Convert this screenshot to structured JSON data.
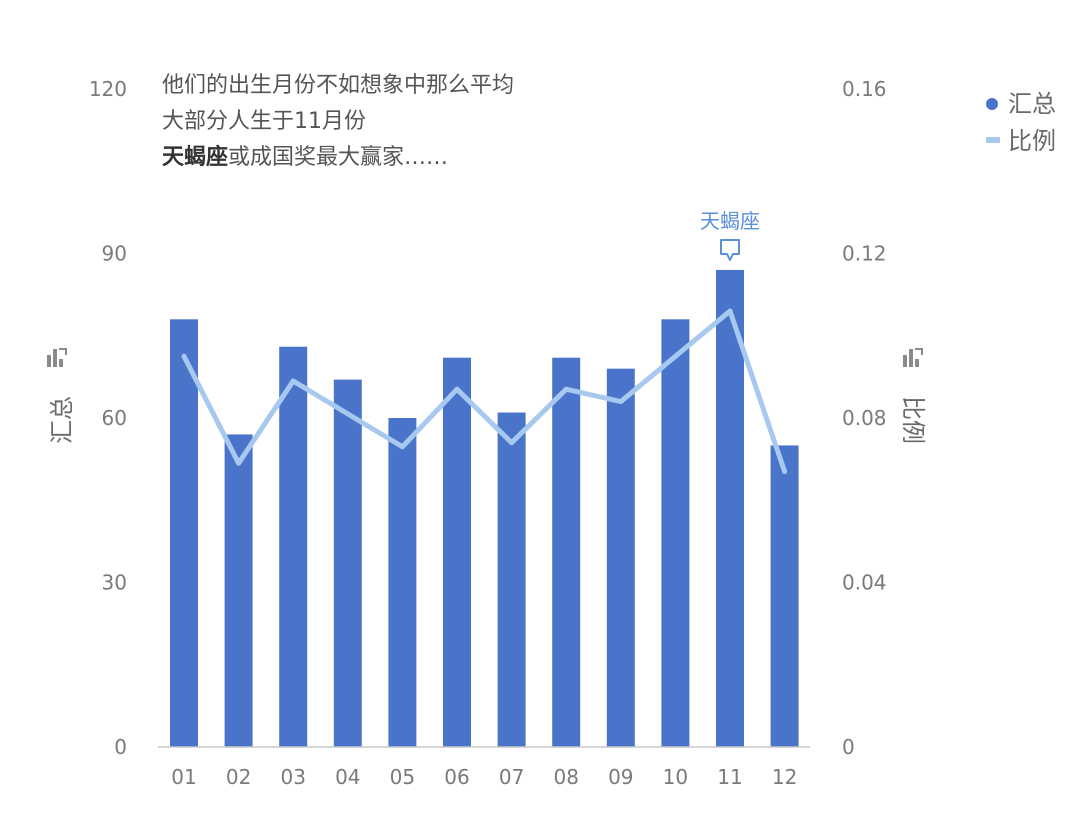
{
  "chart_data": {
    "type": "bar",
    "categories": [
      "01",
      "02",
      "03",
      "04",
      "05",
      "06",
      "07",
      "08",
      "09",
      "10",
      "11",
      "12"
    ],
    "series": [
      {
        "name": "汇总",
        "type": "bar",
        "axis": "left",
        "color": "#4a74c9",
        "values": [
          78,
          57,
          73,
          67,
          60,
          71,
          61,
          71,
          69,
          78,
          87,
          55
        ]
      },
      {
        "name": "比例",
        "type": "line",
        "axis": "right",
        "color": "#a7c8ef",
        "values": [
          0.095,
          0.069,
          0.089,
          0.081,
          0.073,
          0.087,
          0.074,
          0.087,
          0.084,
          0.095,
          0.106,
          0.067
        ]
      }
    ],
    "ylabel_left": "汇总",
    "ylabel_right": "比例",
    "ylim_left": [
      0,
      120
    ],
    "ylim_right": [
      0,
      0.16
    ],
    "yticks_left": [
      "0",
      "30",
      "60",
      "90",
      "120"
    ],
    "yticks_right": [
      "0",
      "0.04",
      "0.08",
      "0.12",
      "0.16"
    ],
    "legend_position": "top-right",
    "grid": false,
    "annotation_lines": [
      {
        "bold": "",
        "text": "他们的出生月份不如想象中那么平均"
      },
      {
        "bold": "",
        "text": "大部分人生于11月份"
      },
      {
        "bold": "天蝎座",
        "text": "或成国奖最大赢家……"
      }
    ],
    "callout": {
      "category": "11",
      "text": "天蝎座"
    }
  }
}
